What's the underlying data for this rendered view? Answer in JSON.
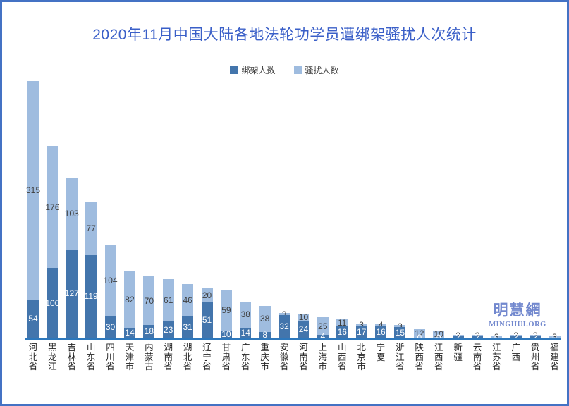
{
  "frame": {
    "border_color": "#4472C4",
    "background": "#FFFFFF"
  },
  "title": {
    "text": "2020年11月中国大陆各地法轮功学员遭绑架骚扰人次统计",
    "color": "#3A5FC8"
  },
  "watermark": {
    "cjk": "明慧網",
    "latin": "MINGHUI.ORG",
    "color": "#7288CE"
  },
  "chart_data": {
    "type": "bar",
    "stacked": true,
    "title": "2020年11月中国大陆各地法轮功学员遭绑架骚扰人次统计",
    "xlabel": "",
    "ylabel": "",
    "ylim": [
      0,
      380
    ],
    "grid": false,
    "legend_position": "top-center",
    "axis_color": "#2E78BC",
    "categories": [
      "河北省",
      "黑龙江",
      "吉林省",
      "山东省",
      "四川省",
      "天津市",
      "内蒙古",
      "湖南省",
      "湖北省",
      "辽宁省",
      "甘肃省",
      "广东省",
      "重庆市",
      "安徽省",
      "河南省",
      "上海市",
      "山西省",
      "北京市",
      "宁夏",
      "浙江省",
      "陕西省",
      "江西省",
      "新疆",
      "云南省",
      "江苏省",
      "广西",
      "贵州省",
      "福建省"
    ],
    "series": [
      {
        "name": "绑架人数",
        "color": "#4375AC",
        "label_color": "#FFFFFF",
        "values": [
          54,
          100,
          127,
          119,
          30,
          14,
          18,
          23,
          31,
          51,
          10,
          14,
          8,
          32,
          24,
          4,
          16,
          17,
          16,
          15,
          0,
          0,
          2,
          2,
          0,
          2,
          2,
          0
        ]
      },
      {
        "name": "骚扰人数",
        "color": "#9FBCDF",
        "label_color": "#3F3F3F",
        "values": [
          315,
          176,
          103,
          77,
          104,
          82,
          70,
          61,
          46,
          20,
          59,
          38,
          38,
          3,
          10,
          25,
          11,
          3,
          4,
          3,
          12,
          10,
          2,
          2,
          3,
          2,
          2,
          3
        ]
      }
    ]
  }
}
